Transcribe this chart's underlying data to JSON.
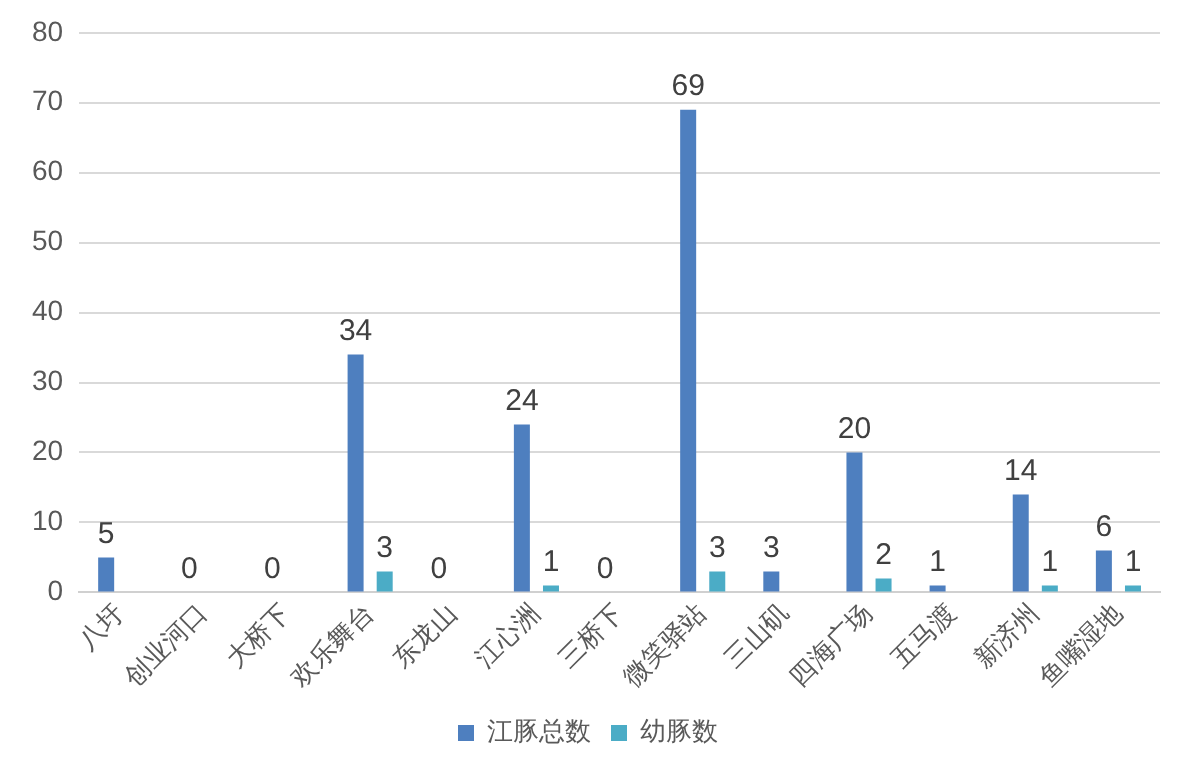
{
  "chart_data": {
    "type": "bar",
    "categories": [
      "八圩",
      "创业河口",
      "大桥下",
      "欢乐舞台",
      "东龙山",
      "江心洲",
      "三桥下",
      "微笑驿站",
      "三山矶",
      "四海广场",
      "五马渡",
      "新济州",
      "鱼嘴湿地"
    ],
    "series": [
      {
        "name": "江豚总数",
        "color": "#4e7fbf",
        "values": [
          5,
          0,
          0,
          34,
          0,
          24,
          0,
          69,
          3,
          20,
          1,
          14,
          6
        ],
        "value_labels": [
          "5",
          "0",
          "0",
          "34",
          "0",
          "24",
          "0",
          "69",
          "3",
          "20",
          "1",
          "14",
          "6"
        ]
      },
      {
        "name": "幼豚数",
        "color": "#4bacc6",
        "values": [
          0,
          0,
          0,
          3,
          0,
          1,
          0,
          3,
          0,
          2,
          0,
          1,
          1
        ],
        "value_labels": [
          null,
          null,
          null,
          "3",
          null,
          "1",
          null,
          "3",
          null,
          "2",
          null,
          "1",
          "1"
        ]
      }
    ],
    "ylim": [
      0,
      80
    ],
    "yticks": [
      0,
      10,
      20,
      30,
      40,
      50,
      60,
      70,
      80
    ],
    "grid": "y",
    "legend": "bottom"
  }
}
